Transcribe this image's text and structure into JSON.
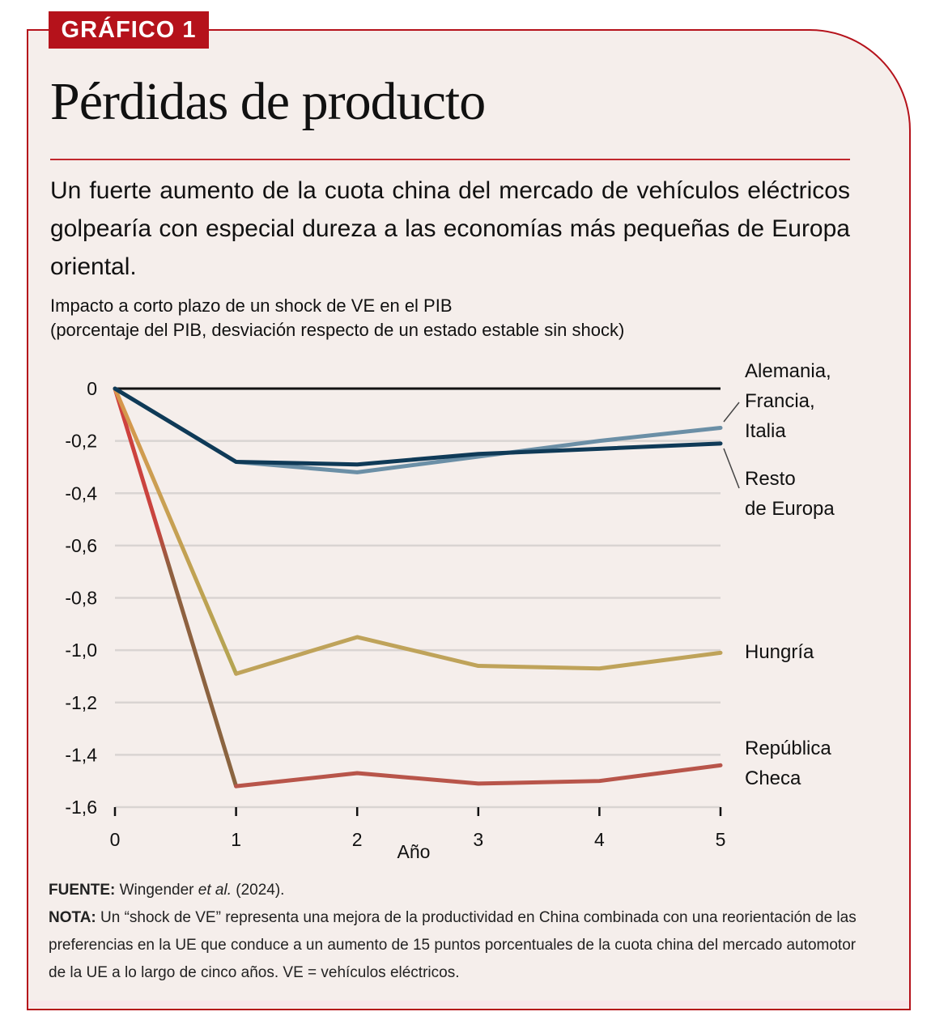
{
  "badge": "GRÁFICO 1",
  "title": "Pérdidas de producto",
  "subtitle": "Un fuerte aumento de la cuota china del mercado de vehículos eléctricos golpearía con especial dureza a las economías más pequeñas de Europa oriental.",
  "axis_caption": {
    "line1": "Impacto a corto plazo de un shock de VE en el PIB",
    "line2": "(porcentaje del PIB, desviación respecto de un estado estable sin shock)"
  },
  "colors": {
    "frame": "#b5121b",
    "background": "#f5eeeb",
    "alemania_francia_italia": "#6b8fa6",
    "resto_europa": "#0f3a57",
    "hungria": "#bfa35a",
    "republica_checa": "#b8554a",
    "zero_line": "#111111",
    "grid": "#d9d4d2"
  },
  "chart_data": {
    "type": "line",
    "title": "Pérdidas de producto",
    "xlabel": "Año",
    "ylabel": "porcentaje del PIB, desviación respecto de un estado estable sin shock",
    "x": [
      0,
      1,
      2,
      3,
      4,
      5
    ],
    "x_tick_labels": [
      "0",
      "1",
      "2",
      "3",
      "4",
      "5"
    ],
    "ylim": [
      -1.6,
      0
    ],
    "y_ticks": [
      0,
      -0.2,
      -0.4,
      -0.6,
      -0.8,
      -1.0,
      -1.2,
      -1.4,
      -1.6
    ],
    "y_tick_labels": [
      "0",
      "-0,2",
      "-0,4",
      "-0,6",
      "-0,8",
      "-1,0",
      "-1,2",
      "-1,4",
      "-1,6"
    ],
    "grid": true,
    "legend": "direct labels at right",
    "series": [
      {
        "key": "afi",
        "name": "Alemania, Francia, Italia",
        "label_lines": [
          "Alemania,",
          "Francia,",
          "Italia"
        ],
        "values": [
          0,
          -0.28,
          -0.32,
          -0.26,
          -0.2,
          -0.15
        ]
      },
      {
        "key": "resto",
        "name": "Resto de Europa",
        "label_lines": [
          "Resto",
          "de Europa"
        ],
        "values": [
          0,
          -0.28,
          -0.29,
          -0.25,
          -0.23,
          -0.21
        ]
      },
      {
        "key": "hungria",
        "name": "Hungría",
        "label_lines": [
          "Hungría"
        ],
        "values": [
          0,
          -1.09,
          -0.95,
          -1.06,
          -1.07,
          -1.01
        ]
      },
      {
        "key": "checa",
        "name": "República Checa",
        "label_lines": [
          "República",
          "Checa"
        ],
        "values": [
          0,
          -1.52,
          -1.47,
          -1.51,
          -1.5,
          -1.44
        ]
      }
    ]
  },
  "footer": {
    "source_label": "FUENTE:",
    "source_text_pre": " Wingender ",
    "source_text_italic": "et al.",
    "source_text_post": " (2024).",
    "note_label": "NOTA:",
    "note_text": " Un “shock de VE” representa una mejora de la productividad en China combinada con una reorientación de las preferencias en la UE que conduce a un aumento de 15 puntos porcentuales de la cuota china del mercado automotor de la UE a lo largo de cinco años.  VE = vehículos eléctricos."
  }
}
